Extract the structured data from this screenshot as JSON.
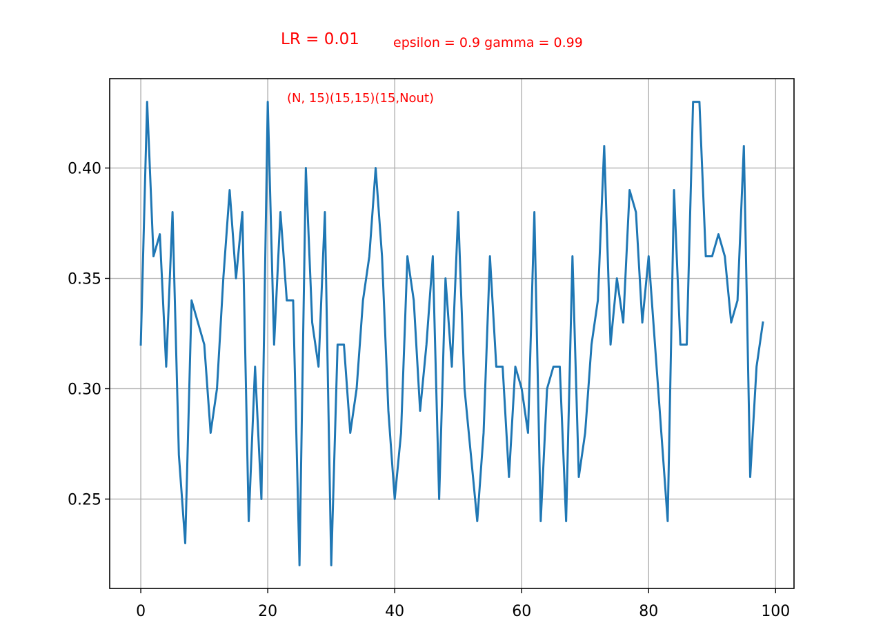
{
  "annotations": {
    "lr": "LR = 0.01",
    "params": "epsilon = 0.9 gamma = 0.99",
    "architecture": "(N, 15)(15,15)(15,Nout)"
  },
  "colors": {
    "line": "#1f77b4",
    "grid": "#b0b0b0",
    "annotation": "#ff0000",
    "axes": "#000000"
  },
  "chart_data": {
    "type": "line",
    "title": "",
    "xlabel": "",
    "ylabel": "",
    "grid": true,
    "xlim": [
      -4.9,
      102.9
    ],
    "ylim": [
      0.2095,
      0.4405
    ],
    "xticks": [
      0,
      20,
      40,
      60,
      80,
      100
    ],
    "xtick_labels": [
      "0",
      "20",
      "40",
      "60",
      "80",
      "100"
    ],
    "yticks": [
      0.25,
      0.3,
      0.35,
      0.4
    ],
    "ytick_labels": [
      "0.25",
      "0.30",
      "0.35",
      "0.40"
    ],
    "series": [
      {
        "x": [
          0,
          1,
          2,
          3,
          4,
          5,
          6,
          7,
          8,
          9,
          10,
          11,
          12,
          13,
          14,
          15,
          16,
          17,
          18,
          19,
          20,
          21,
          22,
          23,
          24,
          25,
          26,
          27,
          28,
          29,
          30,
          31,
          32,
          33,
          34,
          35,
          36,
          37,
          38,
          39,
          40,
          41,
          42,
          43,
          44,
          45,
          46,
          47,
          48,
          49,
          50,
          51,
          52,
          53,
          54,
          55,
          56,
          57,
          58,
          59,
          60,
          61,
          62,
          63,
          64,
          65,
          66,
          67,
          68,
          69,
          70,
          71,
          72,
          73,
          74,
          75,
          76,
          77,
          78,
          79,
          80,
          81,
          82,
          83,
          84,
          85,
          86,
          87,
          88,
          89,
          90,
          91,
          92,
          93,
          94,
          95,
          96,
          97,
          98
        ],
        "values": [
          0.32,
          0.43,
          0.36,
          0.37,
          0.31,
          0.38,
          0.27,
          0.23,
          0.34,
          0.33,
          0.32,
          0.28,
          0.3,
          0.35,
          0.39,
          0.35,
          0.38,
          0.24,
          0.31,
          0.25,
          0.43,
          0.32,
          0.38,
          0.34,
          0.34,
          0.22,
          0.4,
          0.33,
          0.31,
          0.38,
          0.22,
          0.32,
          0.32,
          0.28,
          0.3,
          0.34,
          0.36,
          0.4,
          0.36,
          0.29,
          0.25,
          0.28,
          0.36,
          0.34,
          0.29,
          0.32,
          0.36,
          0.25,
          0.35,
          0.31,
          0.38,
          0.3,
          0.27,
          0.24,
          0.28,
          0.36,
          0.31,
          0.31,
          0.26,
          0.31,
          0.3,
          0.28,
          0.38,
          0.24,
          0.3,
          0.31,
          0.31,
          0.24,
          0.36,
          0.26,
          0.28,
          0.32,
          0.34,
          0.41,
          0.32,
          0.35,
          0.33,
          0.39,
          0.38,
          0.33,
          0.36,
          0.32,
          0.28,
          0.24,
          0.39,
          0.32,
          0.32,
          0.43,
          0.43,
          0.36,
          0.36,
          0.37,
          0.36,
          0.33,
          0.34,
          0.41,
          0.26,
          0.31,
          0.33
        ]
      }
    ]
  }
}
